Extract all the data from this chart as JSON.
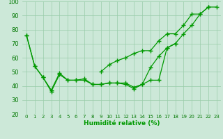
{
  "xlabel": "Humidité relative (%)",
  "background_color": "#cce8d8",
  "grid_color": "#99ccaa",
  "line_color": "#009900",
  "x": [
    0,
    1,
    2,
    3,
    4,
    5,
    6,
    7,
    8,
    9,
    10,
    11,
    12,
    13,
    14,
    15,
    16,
    17,
    18,
    19,
    20,
    21,
    22,
    23
  ],
  "line1": [
    76,
    54,
    46,
    36,
    48,
    44,
    44,
    45,
    41,
    41,
    42,
    42,
    41,
    38,
    41,
    44,
    44,
    67,
    70,
    null,
    null,
    null,
    null,
    null
  ],
  "line2": [
    76,
    54,
    46,
    37,
    49,
    44,
    44,
    44,
    41,
    41,
    42,
    42,
    42,
    39,
    41,
    53,
    61,
    67,
    70,
    77,
    83,
    91,
    96,
    null
  ],
  "line3": [
    null,
    null,
    null,
    null,
    null,
    null,
    null,
    null,
    null,
    50,
    55,
    58,
    60,
    63,
    65,
    65,
    72,
    77,
    77,
    83,
    91,
    91,
    96,
    96
  ],
  "ylim": [
    20,
    100
  ],
  "xlim": [
    -0.5,
    23.5
  ],
  "yticks": [
    20,
    30,
    40,
    50,
    60,
    70,
    80,
    90,
    100
  ],
  "xtick_labels": [
    "0",
    "1",
    "2",
    "3",
    "4",
    "5",
    "6",
    "7",
    "8",
    "9",
    "10",
    "11",
    "12",
    "13",
    "14",
    "15",
    "16",
    "17",
    "18",
    "19",
    "20",
    "21",
    "22",
    "23"
  ]
}
